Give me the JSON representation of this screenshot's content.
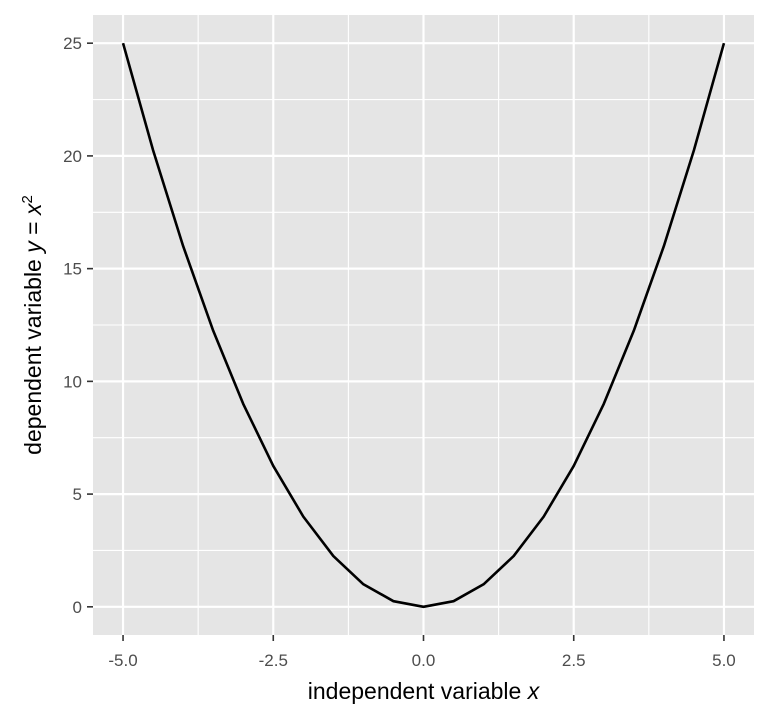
{
  "chart_data": {
    "type": "line",
    "xlabel": "independent variable x",
    "xlabel_parts": {
      "text": "independent variable ",
      "var": "x"
    },
    "ylabel": "dependent variable y = x2",
    "ylabel_parts": {
      "text": "dependent variable ",
      "var": "y",
      "eq": " = ",
      "base": "x",
      "exp": "2"
    },
    "x_ticks": [
      "-5.0",
      "-2.5",
      "0.0",
      "2.5",
      "5.0"
    ],
    "x_tick_values": [
      -5,
      -2.5,
      0,
      2.5,
      5
    ],
    "y_ticks": [
      "0",
      "5",
      "10",
      "15",
      "20",
      "25"
    ],
    "y_tick_values": [
      0,
      5,
      10,
      15,
      20,
      25
    ],
    "xlim": [
      -5.5,
      5.5
    ],
    "ylim": [
      -1.25,
      26.25
    ],
    "grid": true,
    "function": "y = x^2",
    "series": [
      {
        "x": [
          -5,
          -4.5,
          -4,
          -3.5,
          -3,
          -2.5,
          -2,
          -1.5,
          -1,
          -0.5,
          0,
          0.5,
          1,
          1.5,
          2,
          2.5,
          3,
          3.5,
          4,
          4.5,
          5
        ],
        "y": [
          25,
          20.25,
          16,
          12.25,
          9,
          6.25,
          4,
          2.25,
          1,
          0.25,
          0,
          0.25,
          1,
          2.25,
          4,
          6.25,
          9,
          12.25,
          16,
          20.25,
          25
        ]
      }
    ],
    "colors": {
      "panel": "#e5e5e5",
      "grid": "#ffffff",
      "line": "#000000"
    }
  }
}
